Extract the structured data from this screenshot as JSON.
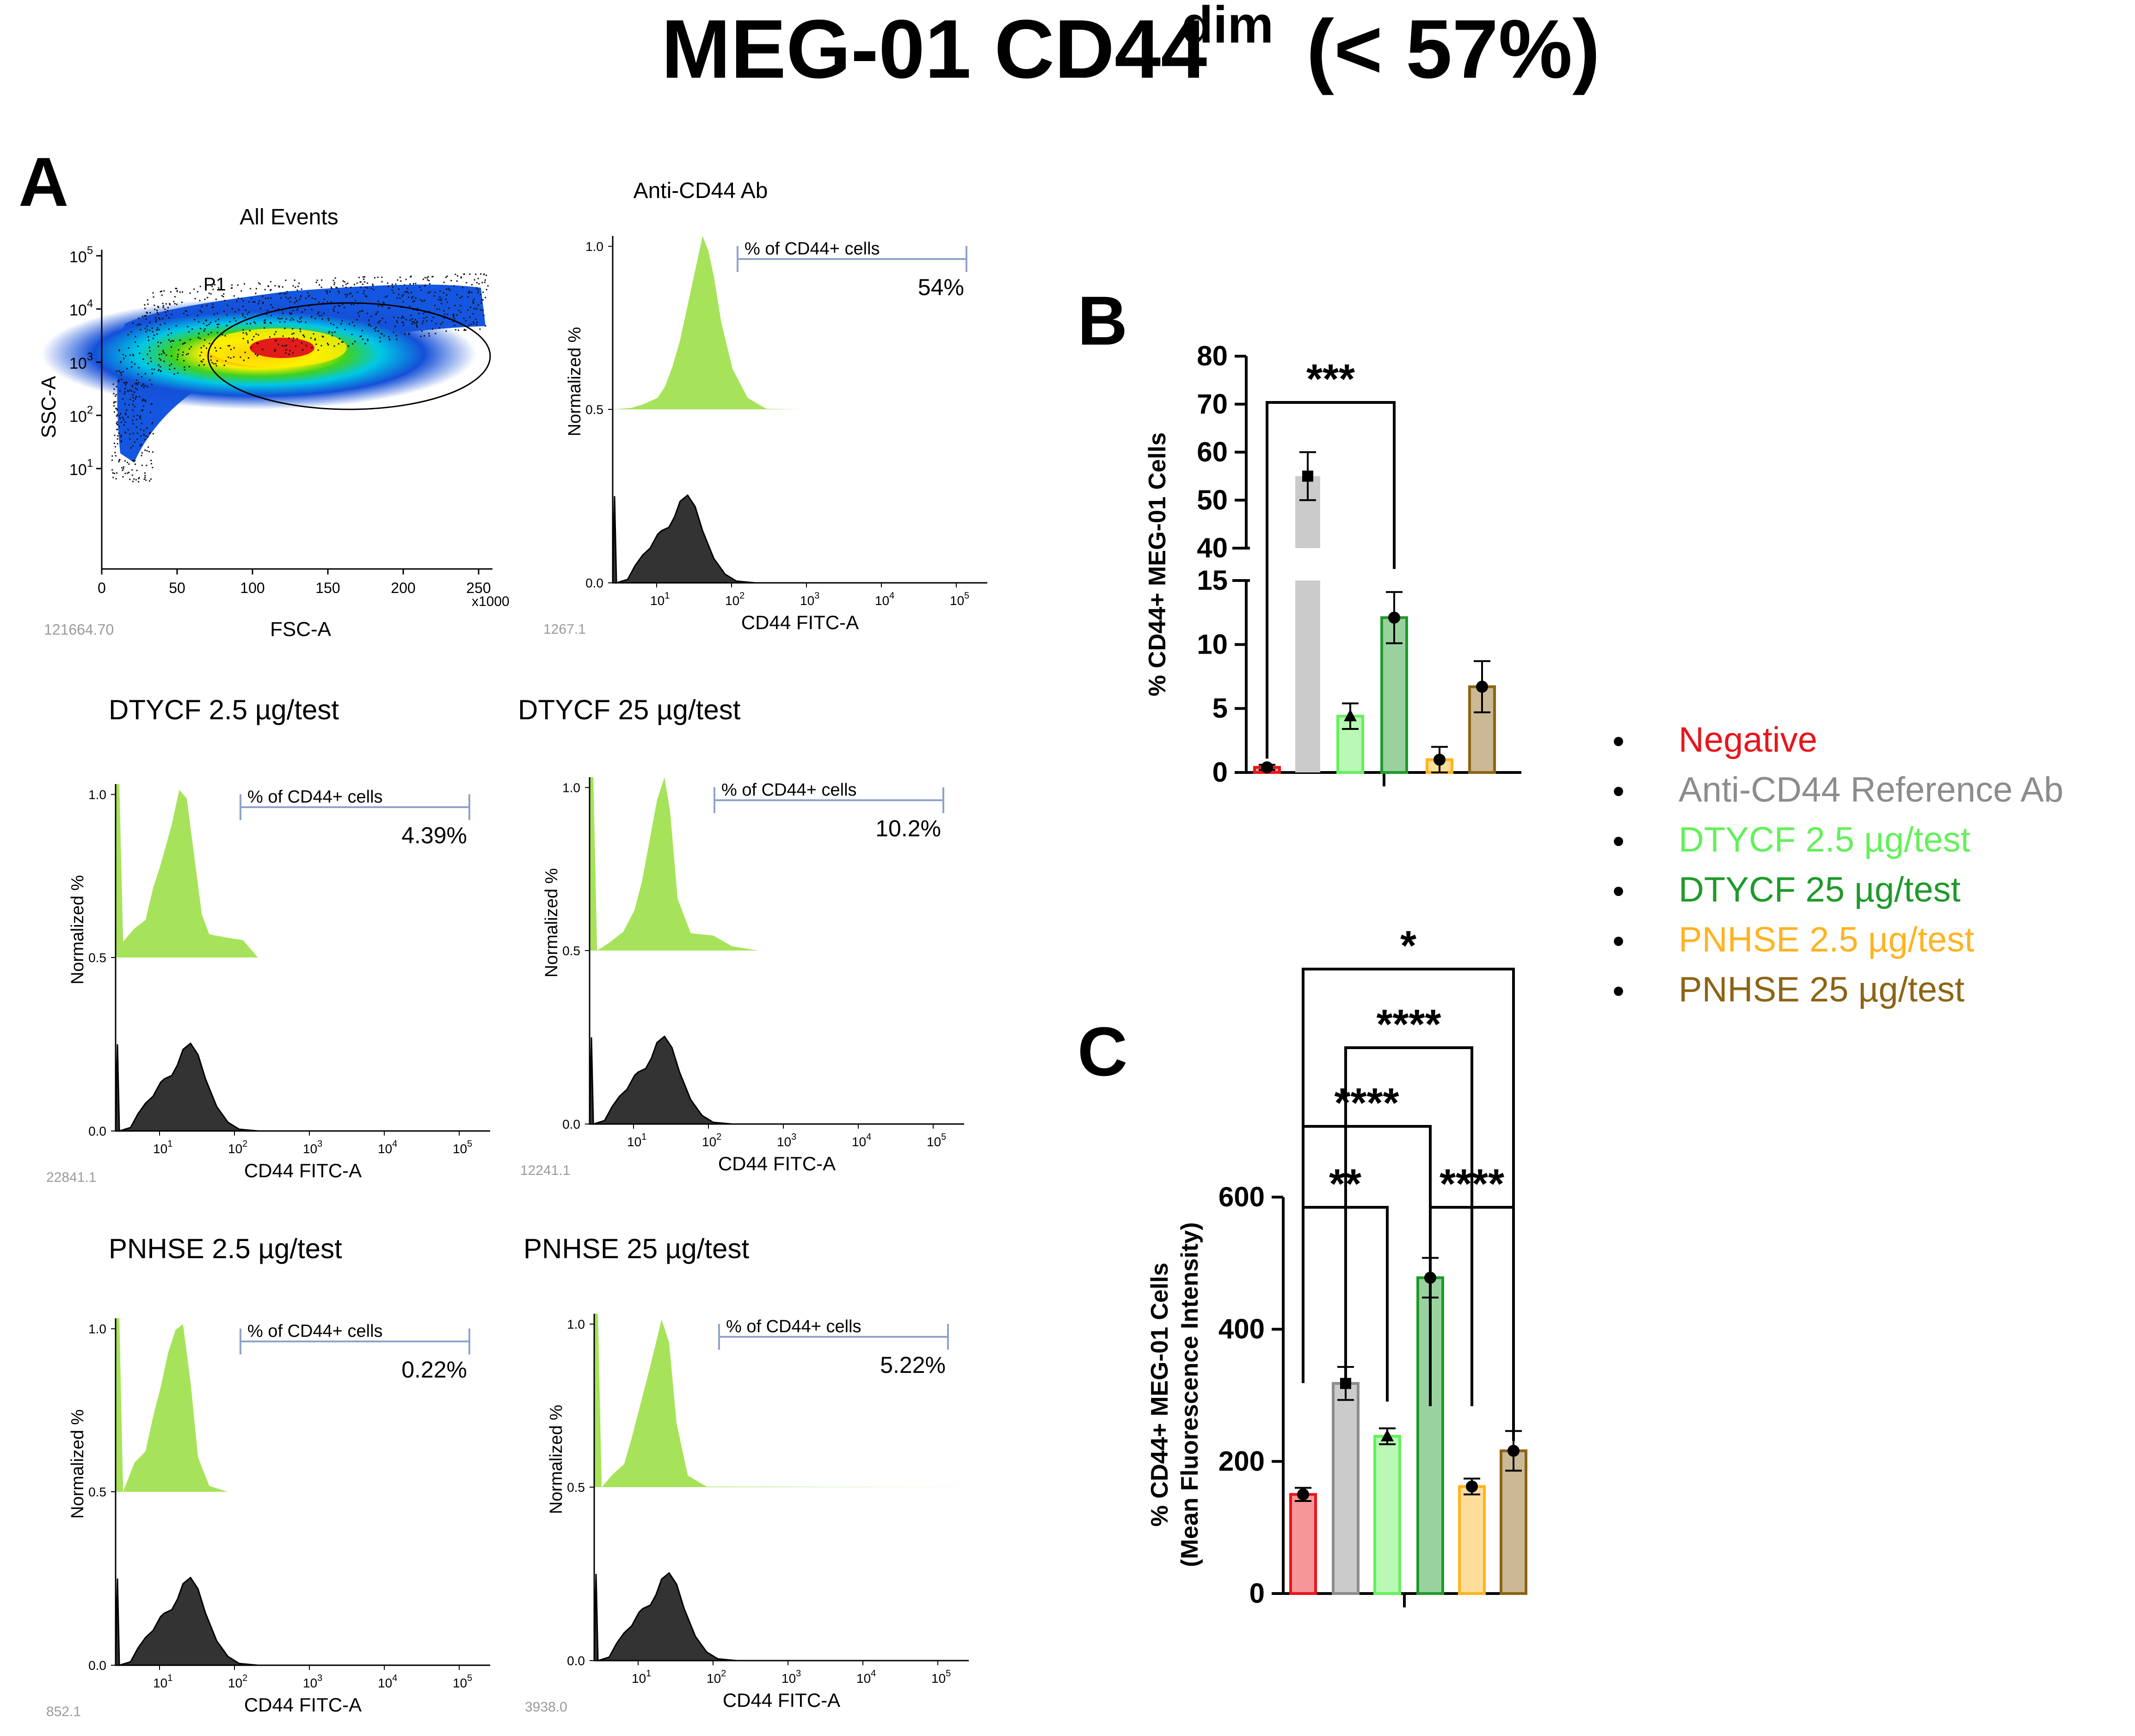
{
  "title": {
    "main": "MEG-01 CD44",
    "sup": "dim",
    "tail": "(< 57%)"
  },
  "panel_letters": {
    "a": "A",
    "b": "B",
    "c": "C"
  },
  "colors": {
    "negative": "#e8151b",
    "reference": "#8c8c8c",
    "dtycf25low": "#64f05a",
    "dtycf25": "#1f9a2a",
    "pnhse25low": "#ffb321",
    "pnhse25": "#8c6414",
    "histGreen": "#a6e35a",
    "histDark": "#333333",
    "gateBlue": "#8ea3c9"
  },
  "common": {
    "ylabel": "Normalized %",
    "xlabel": "CD44 FITC-A",
    "gate_label": "% of CD44+ cells",
    "y_ticks": [
      "1.0",
      "0.5",
      "0.0"
    ],
    "x_tick_base": "10",
    "x_tick_exps": [
      "1",
      "2",
      "3",
      "4",
      "5"
    ]
  },
  "scatter": {
    "title": "All Events",
    "gate": "P1",
    "xlabel": "FSC-A",
    "ylabel": "SSC-A",
    "x_ticks": [
      "0",
      "50",
      "100",
      "150",
      "200",
      "250"
    ],
    "x_mult": "x1000",
    "y_exps": [
      "5",
      "4",
      "3",
      "2",
      "1"
    ],
    "corner": "121664.70"
  },
  "histograms": [
    {
      "title": "Anti-CD44 Ab",
      "pct": "54%",
      "corner": "1267.1"
    },
    {
      "title": "DTYCF 2.5 µg/test",
      "pct": "4.39%",
      "corner": "22841.1"
    },
    {
      "title": "DTYCF 25 µg/test",
      "pct": "10.2%",
      "corner": "12241.1"
    },
    {
      "title": "PNHSE 2.5 µg/test",
      "pct": "0.22%",
      "corner": "852.1"
    },
    {
      "title": "PNHSE 25 µg/test",
      "pct": "5.22%",
      "corner": "3938.0"
    }
  ],
  "legend": [
    {
      "label": "Negative",
      "color": "#e8151b"
    },
    {
      "label": "Anti-CD44 Reference Ab",
      "color": "#8c8c8c"
    },
    {
      "label": "DTYCF 2.5 µg/test",
      "color": "#64f05a"
    },
    {
      "label": "DTYCF 25 µg/test",
      "color": "#1f9a2a"
    },
    {
      "label": "PNHSE 2.5 µg/test",
      "color": "#ffb321"
    },
    {
      "label": "PNHSE 25 µg/test",
      "color": "#8c6414"
    }
  ],
  "chart_data": [
    {
      "panel": "B",
      "type": "bar",
      "ylabel": "% CD44+ MEG-01 Cells",
      "categories": [
        "Negative",
        "Anti-CD44 Reference Ab",
        "DTYCF 2.5 µg/test",
        "DTYCF 25 µg/test",
        "PNHSE 2.5 µg/test",
        "PNHSE 25 µg/test"
      ],
      "values": [
        0.4,
        55,
        4.4,
        12.1,
        1.0,
        6.7
      ],
      "errors": [
        0.2,
        5,
        1.0,
        2.0,
        1.0,
        2.0
      ],
      "markers": [
        "circle",
        "square",
        "triangle",
        "circle",
        "circle",
        "circle"
      ],
      "axis_break": {
        "lower": [
          0,
          15
        ],
        "upper": [
          40,
          80
        ]
      },
      "y_ticks_lower": [
        "0",
        "5",
        "10",
        "15"
      ],
      "y_ticks_upper": [
        "40",
        "50",
        "60",
        "70",
        "80"
      ],
      "significance": [
        {
          "from": 0,
          "to": 3,
          "label": "***"
        }
      ]
    },
    {
      "panel": "C",
      "type": "bar",
      "ylabel": "% CD44+ MEG-01 Cells",
      "ylabel2": "(Mean Fluorescence Intensity)",
      "categories": [
        "Negative",
        "Anti-CD44 Reference Ab",
        "DTYCF 2.5 µg/test",
        "DTYCF 25 µg/test",
        "PNHSE 2.5 µg/test",
        "PNHSE 25 µg/test"
      ],
      "values": [
        150,
        318,
        238,
        478,
        162,
        216
      ],
      "errors": [
        10,
        25,
        12,
        30,
        12,
        30
      ],
      "markers": [
        "circle",
        "square",
        "triangle",
        "circle",
        "circle",
        "circle"
      ],
      "ylim": [
        0,
        600
      ],
      "y_ticks": [
        "0",
        "200",
        "400",
        "600"
      ],
      "significance": [
        {
          "from": 0,
          "to": 5,
          "label": "*"
        },
        {
          "from": 1,
          "to": 4,
          "label": "****"
        },
        {
          "from": 0,
          "to": 3,
          "label": "****"
        },
        {
          "from": 0,
          "to": 2,
          "label": "**"
        },
        {
          "from": 3,
          "to": 5,
          "label": "****"
        }
      ]
    }
  ]
}
